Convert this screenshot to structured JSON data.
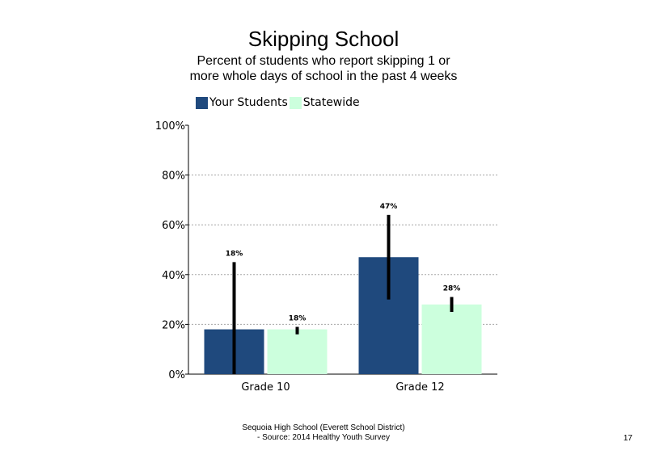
{
  "slide": {
    "footer_line1": "Sequoia High School (Everett School District)",
    "footer_line2": "- Source: 2014 Healthy Youth Survey",
    "page_number": "17"
  },
  "chart_data": {
    "type": "bar",
    "title": "Skipping School",
    "subtitle": "Percent of students who report skipping 1 or more whole days of school in the past 4 weeks",
    "xlabel": "",
    "ylabel": "",
    "categories": [
      "Grade 10",
      "Grade 12"
    ],
    "ylim": [
      0,
      100
    ],
    "yticks": [
      0,
      20,
      40,
      60,
      80,
      100
    ],
    "ytick_labels": [
      "0%",
      "20%",
      "40%",
      "60%",
      "80%",
      "100%"
    ],
    "grid": "horizontal dotted",
    "legend_position": "top-left",
    "series": [
      {
        "name": "Your Students",
        "color": "#1F497D",
        "values": [
          18,
          47
        ],
        "labels": [
          "18%",
          "47%"
        ],
        "error_low": [
          0,
          30
        ],
        "error_high": [
          45,
          64
        ]
      },
      {
        "name": "Statewide",
        "color": "#CCFFDD",
        "values": [
          18,
          28
        ],
        "labels": [
          "18%",
          "28%"
        ],
        "error_low": [
          16,
          25
        ],
        "error_high": [
          19,
          31
        ]
      }
    ]
  }
}
